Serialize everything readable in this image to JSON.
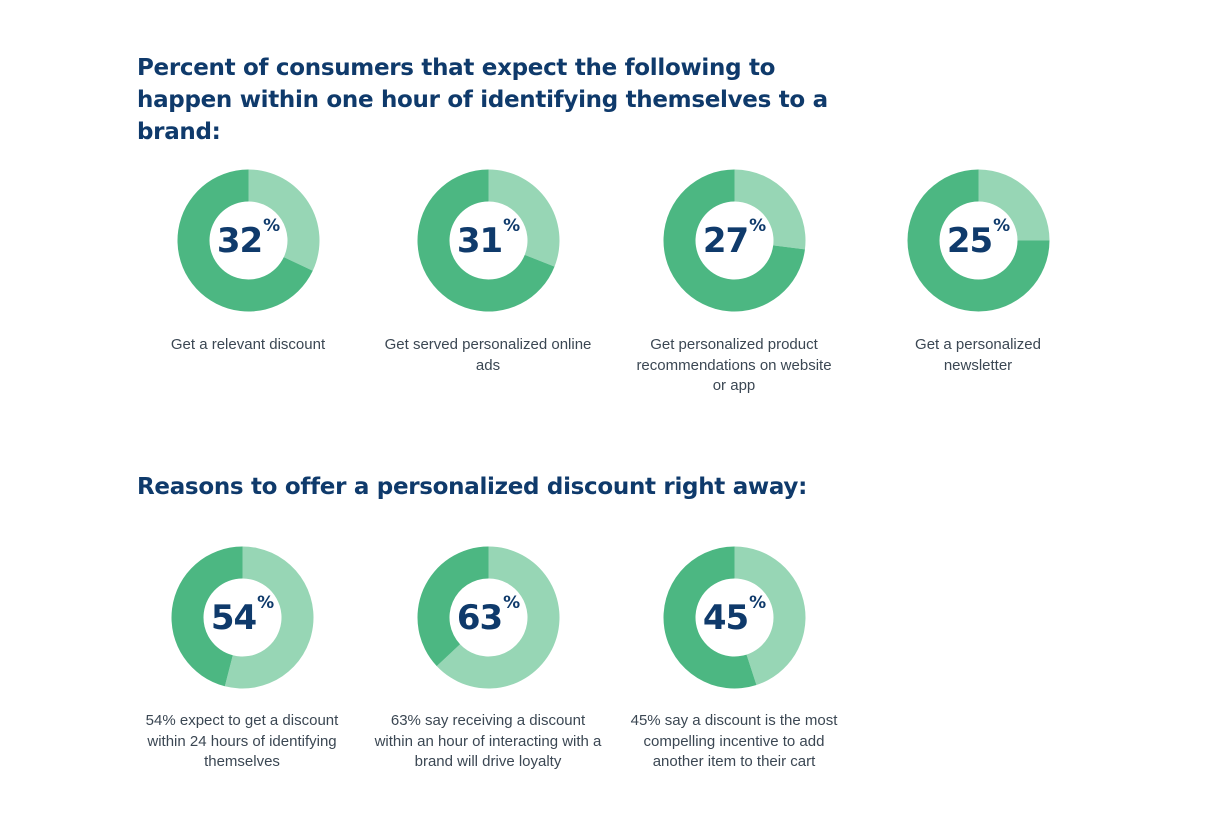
{
  "colors": {
    "title": "#0f3a6b",
    "value_dark": "#4cb782",
    "value_light": "#97d6b5",
    "caption": "#3b4753"
  },
  "section1": {
    "title": "Percent of consumers that expect the following to happen within one hour of identifying themselves to a brand:"
  },
  "section2": {
    "title": "Reasons to offer a personalized discount right away:"
  },
  "chart_data": [
    {
      "type": "pie",
      "donut": true,
      "value": 32,
      "unit": "%",
      "caption": "Get a relevant discount"
    },
    {
      "type": "pie",
      "donut": true,
      "value": 31,
      "unit": "%",
      "caption": "Get served personalized online ads"
    },
    {
      "type": "pie",
      "donut": true,
      "value": 27,
      "unit": "%",
      "caption": "Get personalized product recommendations on website or app"
    },
    {
      "type": "pie",
      "donut": true,
      "value": 25,
      "unit": "%",
      "caption": "Get a personalized newsletter"
    },
    {
      "type": "pie",
      "donut": true,
      "value": 54,
      "unit": "%",
      "caption": "54% expect to get a discount within 24 hours of identifying themselves"
    },
    {
      "type": "pie",
      "donut": true,
      "value": 63,
      "unit": "%",
      "caption": "63% say receiving a discount within an hour of interacting with a brand will drive loyalty"
    },
    {
      "type": "pie",
      "donut": true,
      "value": 45,
      "unit": "%",
      "caption": "45% say a discount is the most compelling incentive to add another item to their cart"
    }
  ]
}
